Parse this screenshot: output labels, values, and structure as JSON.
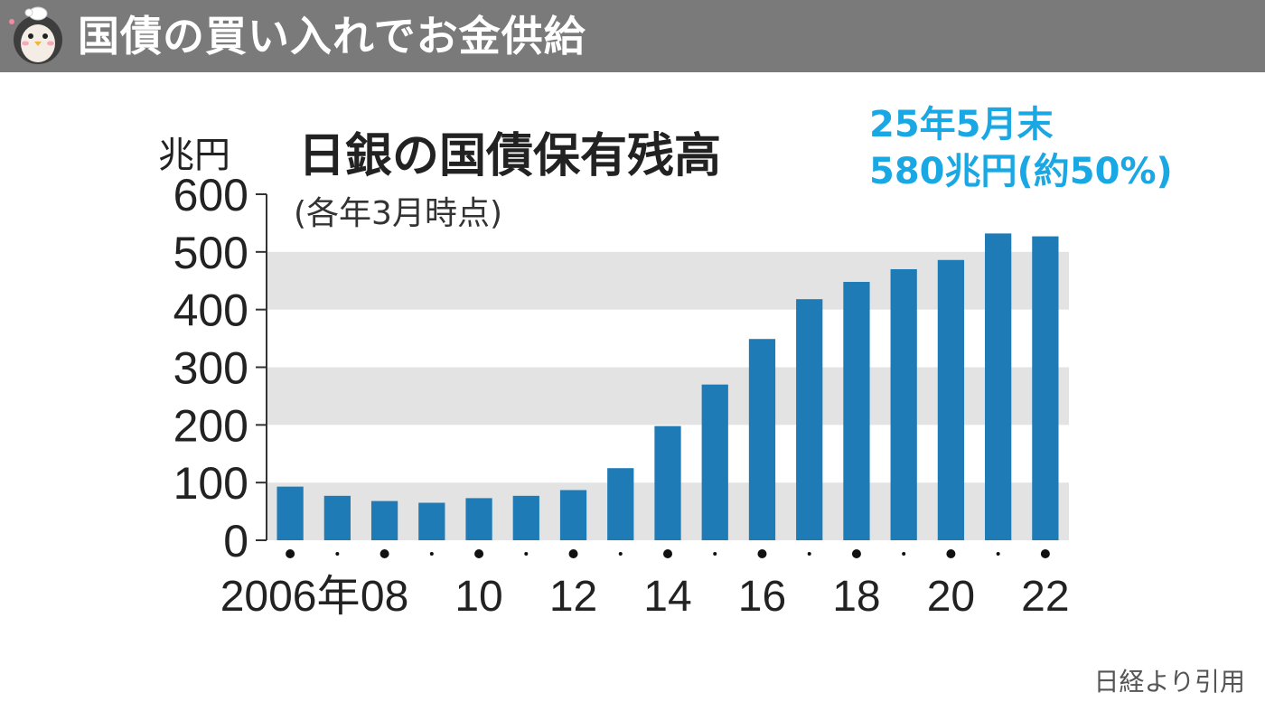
{
  "header": {
    "title": "国債の買い入れでお金供給",
    "avatar_icon": "penguin-mascot-icon"
  },
  "annotation": {
    "line1": "25年5月末",
    "line2": "580兆円(約50%)",
    "color": "#19a8e4"
  },
  "source": "日経より引用",
  "colors": {
    "bar": "#1f7bb6",
    "band": "#e3e3e3",
    "header_bg": "#7a7a7a"
  },
  "chart_data": {
    "type": "bar",
    "title": "日銀の国債保有残高",
    "subtitle": "(各年3月時点)",
    "ylabel": "兆円",
    "ylim": [
      0,
      600
    ],
    "yticks": [
      0,
      100,
      200,
      300,
      400,
      500,
      600
    ],
    "categories": [
      "2006",
      "2007",
      "2008",
      "2009",
      "2010",
      "2011",
      "2012",
      "2013",
      "2014",
      "2015",
      "2016",
      "2017",
      "2018",
      "2019",
      "2020",
      "2021",
      "2022"
    ],
    "tick_labels": [
      "2006年",
      "",
      "08",
      "",
      "10",
      "",
      "12",
      "",
      "14",
      "",
      "16",
      "",
      "18",
      "",
      "20",
      "",
      "22"
    ],
    "values": [
      93,
      77,
      68,
      65,
      73,
      77,
      87,
      125,
      198,
      270,
      349,
      418,
      448,
      470,
      486,
      532,
      527
    ],
    "grid": "alternating horizontal bands"
  }
}
